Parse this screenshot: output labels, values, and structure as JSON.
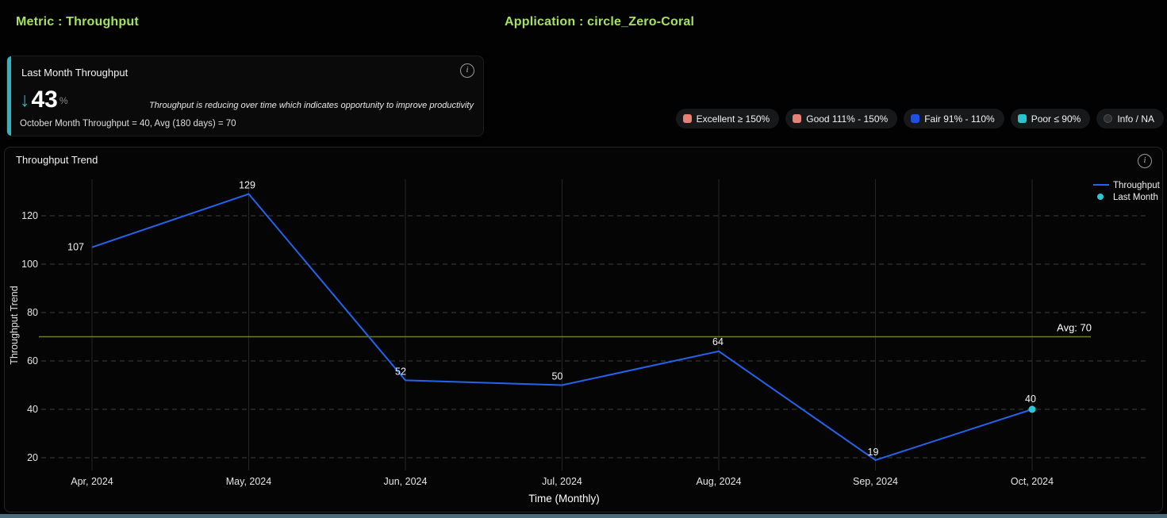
{
  "header": {
    "metric_label": "Metric : Throughput",
    "application_label": "Application : circle_Zero-Coral",
    "accent_color": "#a6e163"
  },
  "kpi_card": {
    "title": "Last Month Throughput",
    "delta_direction": "down",
    "delta_value": "43",
    "delta_unit": "%",
    "note": "Throughput is reducing over time which indicates opportunity to improve productivity",
    "detail": "October Month Throughput = 40, Avg (180 days) = 70",
    "accent_color": "#2ab8c0"
  },
  "status_legend": [
    {
      "label": "Excellent ≥ 150%",
      "color": "#e88078",
      "shape": "square"
    },
    {
      "label": "Good 111% - 150%",
      "color": "#e88078",
      "shape": "square"
    },
    {
      "label": "Fair 91% - 110%",
      "color": "#2050e0",
      "shape": "square"
    },
    {
      "label": "Poor ≤ 90%",
      "color": "#2cc4cc",
      "shape": "square"
    },
    {
      "label": "Info / NA",
      "color": "#303030",
      "shape": "circle"
    }
  ],
  "chart_panel": {
    "title": "Throughput Trend"
  },
  "chart_data": {
    "type": "line",
    "title": "Throughput Trend",
    "x": [
      "Apr, 2024",
      "May, 2024",
      "Jun, 2024",
      "Jul, 2024",
      "Aug, 2024",
      "Sep, 2024",
      "Oct, 2024"
    ],
    "series": [
      {
        "name": "Throughput",
        "values": [
          107,
          129,
          52,
          50,
          64,
          19,
          40
        ],
        "color": "#2563eb"
      }
    ],
    "last_month": {
      "name": "Last Month",
      "index": 6,
      "value": 40,
      "color": "#2fc4d2"
    },
    "average": {
      "label": "Avg: 70",
      "value": 70,
      "color": "#6f7d2d"
    },
    "xlabel": "Time (Monthly)",
    "ylabel": "Throughput Trend",
    "yticks": [
      20,
      40,
      60,
      80,
      100,
      120
    ],
    "ylim": [
      15,
      135
    ],
    "grid": true,
    "legend_position": "top-right",
    "legend": [
      "Throughput",
      "Last Month"
    ]
  }
}
